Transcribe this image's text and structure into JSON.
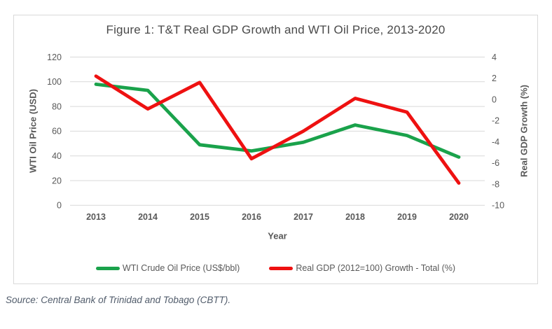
{
  "title": "Figure 1: T&T Real GDP Growth and WTI Oil Price, 2013-2020",
  "source_note": "Source: Central Bank of Trinidad and Tobago (CBTT).",
  "chart_data": {
    "type": "line",
    "title": "Figure 1: T&T Real GDP Growth and WTI Oil Price, 2013-2020",
    "categories": [
      "2013",
      "2014",
      "2015",
      "2016",
      "2017",
      "2018",
      "2019",
      "2020"
    ],
    "xlabel": "Year",
    "grid": true,
    "legend_position": "bottom",
    "left_axis": {
      "label": "WTI Oil Price (USD)",
      "min": 0,
      "max": 120,
      "step": 20,
      "ticks": [
        "120",
        "100",
        "80",
        "60",
        "40",
        "20",
        "0"
      ]
    },
    "right_axis": {
      "label": "Real GDP Growth (%)",
      "min": -10,
      "max": 4,
      "step": 2,
      "ticks": [
        "4",
        "2",
        "0",
        "-2",
        "-4",
        "-6",
        "-8",
        "-10"
      ]
    },
    "series": [
      {
        "name": "WTI Crude Oil Price (US$/bbl)",
        "axis": "left",
        "color": "#1aa24b",
        "values": [
          98,
          93,
          49,
          44,
          51,
          65,
          56.5,
          39
        ]
      },
      {
        "name": "Real GDP (2012=100) Growth - Total (%)",
        "axis": "right",
        "color": "#ee1111",
        "values": [
          2.2,
          -0.9,
          1.6,
          -5.6,
          -3.0,
          0.1,
          -1.2,
          -7.9
        ]
      }
    ],
    "colors": {
      "gridline": "#d9d9d9",
      "tick_text": "#595959",
      "title_text": "#4a4a4a"
    }
  }
}
